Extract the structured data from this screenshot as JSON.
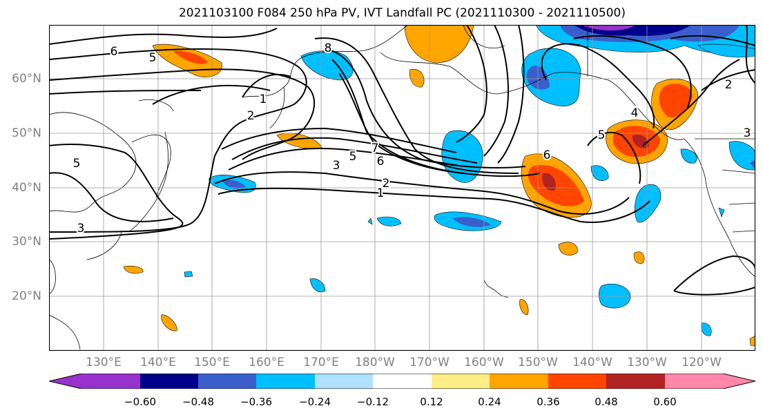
{
  "title": "2021103100 F084 250 hPa PV, IVT Landfall PC (2021110300 - 2021110500)",
  "lat_labels": [
    "60°N",
    "50°N",
    "40°N",
    "30°N",
    "20°N"
  ],
  "lon_labels": [
    "130°E",
    "140°E",
    "150°E",
    "160°E",
    "170°E",
    "180°W",
    "170°W",
    "160°W",
    "150°W",
    "140°W",
    "130°W",
    "120°W"
  ],
  "contour_labels": [
    "6",
    "5",
    "1",
    "2",
    "8",
    "7",
    "6",
    "5",
    "3",
    "2",
    "1",
    "6",
    "5",
    "4",
    "3",
    "2",
    "5",
    "3"
  ],
  "colorbar": {
    "tick_labels": [
      "−0.60",
      "−0.48",
      "−0.36",
      "−0.24",
      "−0.12",
      "0.12",
      "0.24",
      "0.36",
      "0.48",
      "0.60"
    ],
    "colors": [
      "#9932cc",
      "#00008b",
      "#3a5fcd",
      "#00bfff",
      "#b0e2ff",
      "#ffffff",
      "#ffee88",
      "#ffa500",
      "#ff4500",
      "#b22222",
      "#ff88aa"
    ]
  }
}
